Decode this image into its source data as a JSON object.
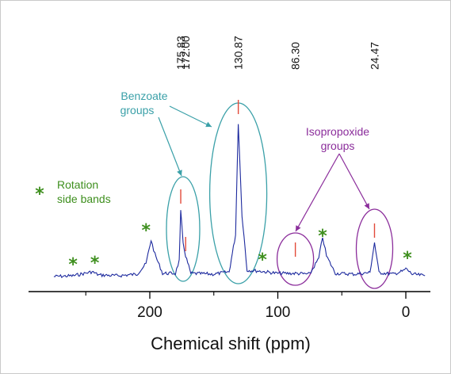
{
  "chart_data": {
    "type": "line",
    "title": "",
    "xlabel": "Chemical shift (ppm)",
    "ylabel": "",
    "xlim": [
      280,
      -18
    ],
    "x_reversed": true,
    "xticks": [
      "200",
      "100",
      "0"
    ],
    "xtick_values": [
      200,
      100,
      0
    ],
    "grid": false,
    "series": [
      {
        "line_color": "#1d2a9e",
        "points": [
          [
            275,
            0.02
          ],
          [
            260,
            0.03
          ],
          [
            245,
            0.08
          ],
          [
            240,
            0.04
          ],
          [
            225,
            0.03
          ],
          [
            210,
            0.05
          ],
          [
            203,
            0.18
          ],
          [
            199,
            0.48
          ],
          [
            196,
            0.3
          ],
          [
            190,
            0.06
          ],
          [
            180,
            0.06
          ],
          [
            177,
            0.22
          ],
          [
            175.83,
            0.84
          ],
          [
            174,
            0.45
          ],
          [
            172,
            0.28
          ],
          [
            168,
            0.06
          ],
          [
            150,
            0.05
          ],
          [
            138,
            0.08
          ],
          [
            133,
            0.55
          ],
          [
            130.87,
            1.96
          ],
          [
            128,
            0.8
          ],
          [
            124,
            0.1
          ],
          [
            115,
            0.09
          ],
          [
            100,
            0.06
          ],
          [
            86.3,
            0.06
          ],
          [
            75,
            0.05
          ],
          [
            68,
            0.25
          ],
          [
            65,
            0.52
          ],
          [
            62,
            0.28
          ],
          [
            55,
            0.06
          ],
          [
            40,
            0.05
          ],
          [
            28,
            0.07
          ],
          [
            24.47,
            0.45
          ],
          [
            21,
            0.07
          ],
          [
            10,
            0.05
          ],
          [
            2,
            0.09
          ],
          [
            0,
            0.12
          ],
          [
            -5,
            0.05
          ],
          [
            -15,
            0.03
          ]
        ]
      }
    ],
    "peak_labels": [
      {
        "text": "175.83",
        "ppm": 175.83
      },
      {
        "text": "172.00",
        "ppm": 172.0
      },
      {
        "text": "130.87",
        "ppm": 130.87
      },
      {
        "text": "86.30",
        "ppm": 86.3
      },
      {
        "text": "24.47",
        "ppm": 24.47
      }
    ],
    "annotations": {
      "benzoate": {
        "lines": [
          "Benzoate",
          "groups"
        ],
        "color": "#3aa0a8"
      },
      "isopropoxide": {
        "lines": [
          "Isopropoxide",
          "groups"
        ],
        "color": "#8b2d9b"
      },
      "side_bands": {
        "lines": [
          "Rotation",
          "side bands"
        ],
        "color": "#3e8f1e",
        "marker": "*"
      }
    },
    "spinning_sideband_positions_ppm": [
      260,
      243,
      198,
      112,
      65,
      0
    ],
    "peak_marker_color": "#e24a3a"
  }
}
